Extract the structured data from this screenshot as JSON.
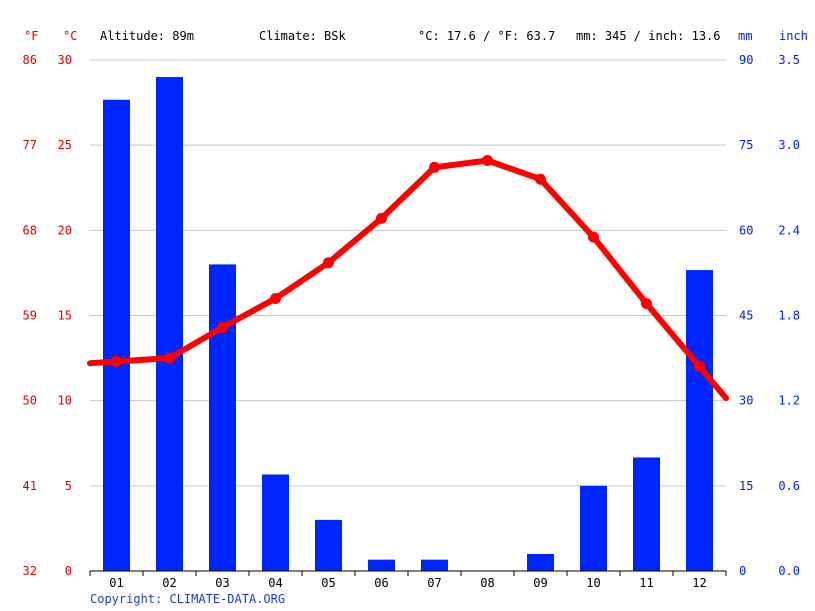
{
  "header": {
    "unit_f": "°F",
    "unit_c": "°C",
    "altitude": "Altitude: 89m",
    "climate": "Climate: BSk",
    "temp_summary": "°C: 17.6 / °F: 63.7",
    "precip_summary": "mm: 345 / inch: 13.6",
    "unit_mm": "mm",
    "unit_inch": "inch"
  },
  "copyright": "Copyright: CLIMATE-DATA.ORG",
  "colors": {
    "temperature": "#ff0000",
    "precipitation": "#0026ff",
    "grid": "#c8c8c8",
    "left_axis_text": "#e30000",
    "right_axis_text": "#0020ff"
  },
  "chart_data": {
    "type": "bar",
    "combined_with": "line",
    "categories": [
      "01",
      "02",
      "03",
      "04",
      "05",
      "06",
      "07",
      "08",
      "09",
      "10",
      "11",
      "12"
    ],
    "series": [
      {
        "type": "bar",
        "axis": "right",
        "unit": "mm",
        "values": [
          83,
          87,
          54,
          17,
          9,
          2,
          2,
          0,
          3,
          15,
          20,
          53
        ]
      },
      {
        "type": "line",
        "axis": "left",
        "unit": "°C",
        "values": [
          12.3,
          12.5,
          14.3,
          16.0,
          18.1,
          20.7,
          23.7,
          24.1,
          23.0,
          19.6,
          15.7,
          12.0
        ]
      }
    ],
    "y_left": {
      "celsius_ticks": [
        "0",
        "5",
        "10",
        "15",
        "20",
        "25",
        "30"
      ],
      "fahrenheit_ticks": [
        "32",
        "41",
        "50",
        "59",
        "68",
        "77",
        "86"
      ],
      "range": [
        0,
        30
      ]
    },
    "y_right": {
      "mm_ticks": [
        "0",
        "15",
        "30",
        "45",
        "60",
        "75",
        "90"
      ],
      "inch_ticks": [
        "0.0",
        "0.6",
        "1.2",
        "1.8",
        "2.4",
        "3.0",
        "3.5"
      ],
      "range": [
        0,
        90
      ]
    },
    "grid": true
  }
}
